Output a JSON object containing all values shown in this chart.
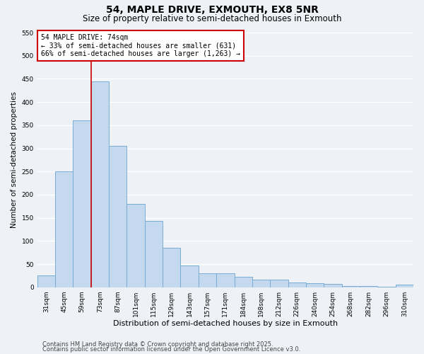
{
  "title": "54, MAPLE DRIVE, EXMOUTH, EX8 5NR",
  "subtitle": "Size of property relative to semi-detached houses in Exmouth",
  "xlabel": "Distribution of semi-detached houses by size in Exmouth",
  "ylabel": "Number of semi-detached properties",
  "categories": [
    "31sqm",
    "45sqm",
    "59sqm",
    "73sqm",
    "87sqm",
    "101sqm",
    "115sqm",
    "129sqm",
    "143sqm",
    "157sqm",
    "171sqm",
    "184sqm",
    "198sqm",
    "212sqm",
    "226sqm",
    "240sqm",
    "254sqm",
    "268sqm",
    "282sqm",
    "296sqm",
    "310sqm"
  ],
  "values": [
    25,
    250,
    360,
    445,
    305,
    180,
    143,
    85,
    47,
    30,
    30,
    22,
    17,
    17,
    10,
    8,
    7,
    3,
    2,
    1,
    5
  ],
  "bar_color": "#c5d9ee",
  "bar_edge_color": "#7aadd4",
  "vline_color": "#cc0000",
  "vline_x": 3.0,
  "annotation_title": "54 MAPLE DRIVE: 74sqm",
  "annotation_line1": "← 33% of semi-detached houses are smaller (631)",
  "annotation_line2": "66% of semi-detached houses are larger (1,263) →",
  "annotation_box_color": "#cc0000",
  "ylim": [
    0,
    550
  ],
  "yticks": [
    0,
    50,
    100,
    150,
    200,
    250,
    300,
    350,
    400,
    450,
    500,
    550
  ],
  "footnote1": "Contains HM Land Registry data © Crown copyright and database right 2025.",
  "footnote2": "Contains public sector information licensed under the Open Government Licence v3.0.",
  "bg_color": "#eef2f7",
  "grid_color": "#ffffff",
  "title_fontsize": 10,
  "subtitle_fontsize": 8.5,
  "ylabel_fontsize": 7.5,
  "xlabel_fontsize": 8,
  "tick_fontsize": 6.5,
  "annotation_fontsize": 7,
  "footnote_fontsize": 6
}
